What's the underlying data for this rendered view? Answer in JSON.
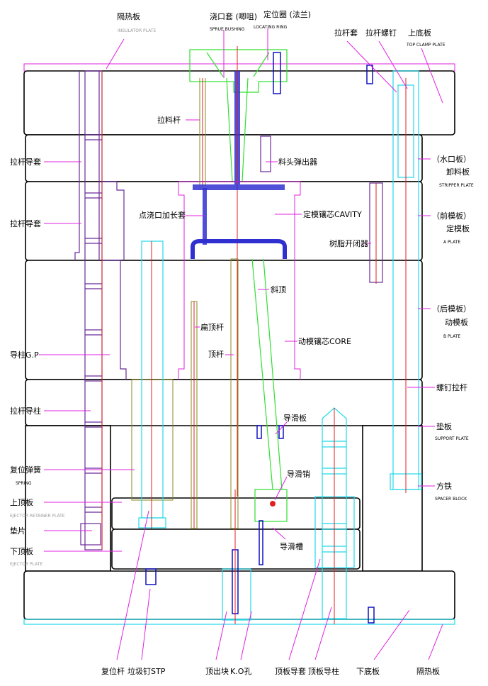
{
  "labels": {
    "insulator_top_cn": "隔热板",
    "insulator_top_en": "INSULATOR PLATE",
    "sprue_cn": "浇口套 (唧咀)",
    "sprue_en": "SPRUE BUSHING",
    "locating_cn": "定位圈 (法兰)",
    "locating_en": "LOCATING RING",
    "puller_sleeve": "拉杆套",
    "puller_screw": "拉杆螺钉",
    "top_clamp_cn": "上底板",
    "top_clamp_en": "TOP CLAMP PLATE",
    "stripper_alt": "（水口板）",
    "stripper_cn": "卸料板",
    "stripper_en": "STRIPPER PLATE",
    "a_plate_alt": "（前模板）",
    "a_plate_cn": "定模板",
    "a_plate_en": "A PLATE",
    "b_plate_alt": "（后模板）",
    "b_plate_cn": "动模板",
    "b_plate_en": "B PLATE",
    "screw_puller": "螺钉拉杆",
    "support_cn": "垫板",
    "support_en": "SUPPORT PLATE",
    "spacer_cn": "方铁",
    "spacer_en": "SPACER BLOCK",
    "puller_bush_1": "拉杆导套",
    "puller_bush_2": "拉杆导套",
    "guide_pin": "导柱G.P",
    "puller_guide_pin": "拉杆导柱",
    "spring_cn": "复位弹簧",
    "spring_en": "SPRING",
    "retainer_cn": "上顶板",
    "retainer_en": "EJECTOR RETAINER PLATE",
    "shim": "垫片",
    "ejector_plate_cn": "下顶板",
    "ejector_plate_en": "EJECTOR PLATE",
    "sprue_puller": "拉料杆",
    "runner_ejector": "料头弹出器",
    "pin_gate_sleeve": "点浇口加长套",
    "cavity": "定模镶芯CAVITY",
    "resin_latch": "树脂开闭器",
    "lifter": "斜顶",
    "flat_ejector": "扁顶杆",
    "ejector_pin": "顶杆",
    "core": "动模镶芯CORE",
    "guide_slide_plate": "导滑板",
    "guide_slide_pin": "导滑销",
    "guide_slide_slot": "导滑槽",
    "return_pin": "复位杆",
    "stop_pin": "垃圾钉STP",
    "ko_block": "顶出块",
    "ko_hole": "K.O孔",
    "ejector_bush": "顶板导套",
    "ejector_guide_pin": "顶板导柱",
    "bottom_clamp": "下底板",
    "insulator_bottom": "隔热板"
  },
  "colors": {
    "leader": "#e020e0",
    "plate_outline": "#000000",
    "guide_components": "#6a2a9a",
    "cyan_components": "#20d8e8",
    "sprue_ring": "#30e030",
    "centerline": "#e02020",
    "screws": "#1010c0"
  }
}
